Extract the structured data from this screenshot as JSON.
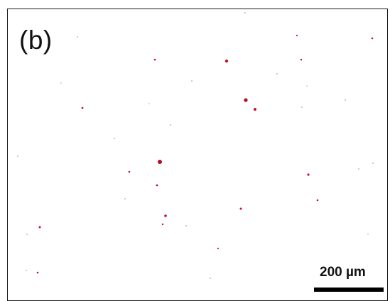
{
  "panel_label": "(b)",
  "scale_bar": {
    "label": "200 µm"
  },
  "colors": {
    "particle": "#c8102e",
    "particle_faint": "#e8aab4",
    "background": "#ffffff",
    "border": "#1a1a1a"
  }
}
